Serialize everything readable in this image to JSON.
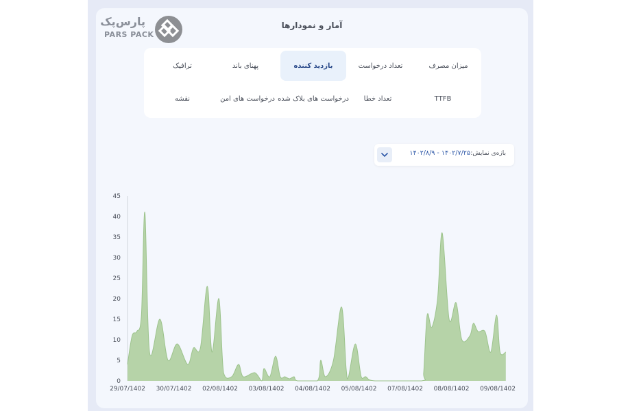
{
  "header": {
    "title": "آمار و نمودارها",
    "logo_text_fa": "پارس‌پک",
    "logo_text_en": "PARS PACK"
  },
  "tabs": [
    {
      "label": "میزان مصرف",
      "active": false
    },
    {
      "label": "تعداد درخواست",
      "active": false
    },
    {
      "label": "بازدید کننده",
      "active": true
    },
    {
      "label": "پهنای باند",
      "active": false
    },
    {
      "label": "ترافیک",
      "active": false
    },
    {
      "label": "TTFB",
      "active": false
    },
    {
      "label": "تعداد خطا",
      "active": false
    },
    {
      "label": "درخواست های بلاک شده",
      "active": false
    },
    {
      "label": "درخواست های امن",
      "active": false
    },
    {
      "label": "نقشه",
      "active": false
    }
  ],
  "range": {
    "label": "بازه‌ی نمایش:",
    "value": "۱۴۰۲/۷/۲۵ - ۱۴۰۲/۸/۹"
  },
  "colors": {
    "area_fill": "#b6d3a8",
    "area_stroke": "#9cc38c",
    "active_tab_bg": "#e9f1fb",
    "accent": "#2e58a8"
  },
  "chart_data": {
    "type": "area",
    "ylim": [
      0,
      45
    ],
    "yticks": [
      0,
      5,
      10,
      15,
      20,
      25,
      30,
      35,
      40,
      45
    ],
    "xlim": [
      0,
      16
    ],
    "xticks": [
      {
        "label": "29/07/1402",
        "x": 0
      },
      {
        "label": "30/07/1402",
        "x": 2
      },
      {
        "label": "02/08/1402",
        "x": 4
      },
      {
        "label": "03/08/1402",
        "x": 6
      },
      {
        "label": "04/08/1402",
        "x": 8
      },
      {
        "label": "05/08/1402",
        "x": 10
      },
      {
        "label": "07/08/1402",
        "x": 12
      },
      {
        "label": "08/08/1402",
        "x": 14
      },
      {
        "label": "09/08/1402",
        "x": 16
      }
    ],
    "grid": false,
    "series": [
      {
        "values": [
          [
            0,
            4
          ],
          [
            0.2,
            11
          ],
          [
            0.4,
            12
          ],
          [
            0.6,
            16
          ],
          [
            0.75,
            41
          ],
          [
            0.95,
            7
          ],
          [
            1.4,
            15
          ],
          [
            1.75,
            5
          ],
          [
            2.15,
            9
          ],
          [
            2.6,
            4
          ],
          [
            2.85,
            8
          ],
          [
            3.15,
            8
          ],
          [
            3.45,
            23
          ],
          [
            3.65,
            7
          ],
          [
            3.95,
            20
          ],
          [
            4.15,
            2
          ],
          [
            4.5,
            1
          ],
          [
            4.8,
            4
          ],
          [
            5.0,
            1
          ],
          [
            5.5,
            2
          ],
          [
            5.8,
            0
          ],
          [
            5.9,
            3
          ],
          [
            6.15,
            1
          ],
          [
            6.4,
            6
          ],
          [
            6.6,
            1
          ],
          [
            6.8,
            1
          ],
          [
            7.0,
            0.5
          ],
          [
            7.2,
            1
          ],
          [
            7.35,
            0
          ],
          [
            8.2,
            0
          ],
          [
            8.35,
            5
          ],
          [
            8.55,
            1
          ],
          [
            8.9,
            5
          ],
          [
            9.25,
            18
          ],
          [
            9.45,
            3
          ],
          [
            9.55,
            1
          ],
          [
            9.85,
            9
          ],
          [
            10.1,
            1
          ],
          [
            10.3,
            1
          ],
          [
            10.7,
            0
          ],
          [
            12.7,
            0
          ],
          [
            12.8,
            2
          ],
          [
            12.95,
            16
          ],
          [
            13.15,
            13
          ],
          [
            13.4,
            20
          ],
          [
            13.6,
            36
          ],
          [
            13.9,
            15
          ],
          [
            14.2,
            19
          ],
          [
            14.45,
            10
          ],
          [
            14.8,
            11
          ],
          [
            14.95,
            14
          ],
          [
            15.15,
            12
          ],
          [
            15.45,
            12
          ],
          [
            15.7,
            7
          ],
          [
            15.95,
            16
          ],
          [
            16.1,
            7
          ],
          [
            16.35,
            7
          ]
        ]
      }
    ]
  }
}
